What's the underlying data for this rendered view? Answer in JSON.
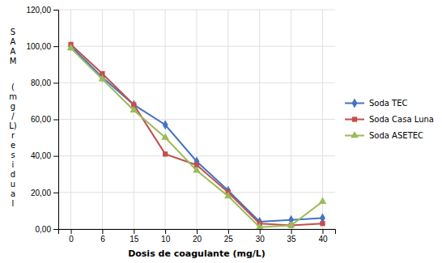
{
  "chart_data": {
    "type": "line",
    "xlabel": "Dosis de coagulante (mg/L)",
    "annotations": [
      {
        "text": "S\nA\nA\nM"
      },
      {
        "text": "(\nm\ng\n/\nL)\nr\ne\ns\ni\nd\nu\na\nl"
      }
    ],
    "categories": [
      "0",
      "6",
      "15",
      "10",
      "20",
      "25",
      "30",
      "35",
      "40"
    ],
    "series": [
      {
        "name": "Soda TEC",
        "color": "#4472C4",
        "marker": "diamond",
        "values": [
          100.0,
          83.0,
          68.0,
          57.0,
          37.0,
          21.0,
          4.0,
          5.0,
          6.0
        ]
      },
      {
        "name": "Soda Casa Luna",
        "color": "#C0504D",
        "marker": "square",
        "values": [
          101.0,
          85.0,
          68.0,
          41.0,
          35.0,
          20.0,
          3.0,
          2.0,
          3.0
        ]
      },
      {
        "name": "Soda ASETEC",
        "color": "#9BBB59",
        "marker": "triangle",
        "values": [
          99.0,
          82.0,
          65.0,
          50.0,
          32.0,
          18.0,
          1.0,
          2.0,
          15.0
        ]
      }
    ],
    "ylim": [
      0.0,
      120.0
    ],
    "yticks": [
      {
        "value": 0.0,
        "label": "0,00"
      },
      {
        "value": 20.0,
        "label": "20,00"
      },
      {
        "value": 40.0,
        "label": "40,00"
      },
      {
        "value": 60.0,
        "label": "60,00"
      },
      {
        "value": 80.0,
        "label": "80,00"
      },
      {
        "value": 100.0,
        "label": "100,00"
      },
      {
        "value": 120.0,
        "label": "120,00"
      }
    ],
    "grid": true,
    "legend": "right"
  }
}
